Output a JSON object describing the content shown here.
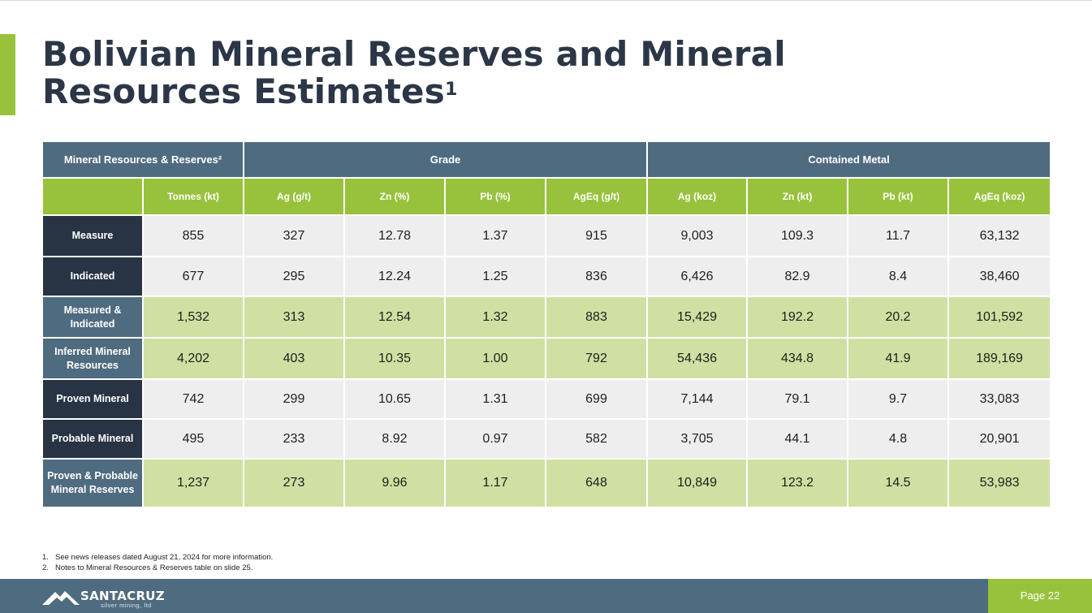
{
  "slide": {
    "title_line1": "Bolivian Mineral Reserves and Mineral",
    "title_line2": "Resources Estimates",
    "title_sup": "1",
    "page_label": "Page 22"
  },
  "brand": {
    "name": "SANTACRUZ",
    "tagline": "silver mining, ltd",
    "colors": {
      "green": "#98c23c",
      "slate": "#4f6b7f",
      "navy": "#283444"
    }
  },
  "table": {
    "group_headers": [
      "Mineral Resources & Reserves²",
      "Grade",
      "Contained Metal"
    ],
    "columns": [
      "Tonnes (kt)",
      "Ag (g/t)",
      "Zn (%)",
      "Pb (%)",
      "AgEq (g/t)",
      "Ag (koz)",
      "Zn (kt)",
      "Pb (kt)",
      "AgEq (koz)"
    ],
    "rows": [
      {
        "label": "Measure",
        "values": [
          "855",
          "327",
          "12.78",
          "1.37",
          "915",
          "9,003",
          "109.3",
          "11.7",
          "63,132"
        ]
      },
      {
        "label": "Indicated",
        "values": [
          "677",
          "295",
          "12.24",
          "1.25",
          "836",
          "6,426",
          "82.9",
          "8.4",
          "38,460"
        ]
      },
      {
        "label": "Measured & Indicated",
        "values": [
          "1,532",
          "313",
          "12.54",
          "1.32",
          "883",
          "15,429",
          "192.2",
          "20.2",
          "101,592"
        ]
      },
      {
        "label": "Inferred Mineral Resources",
        "values": [
          "4,202",
          "403",
          "10.35",
          "1.00",
          "792",
          "54,436",
          "434.8",
          "41.9",
          "189,169"
        ]
      },
      {
        "label": "Proven Mineral",
        "values": [
          "742",
          "299",
          "10.65",
          "1.31",
          "699",
          "7,144",
          "79.1",
          "9.7",
          "33,083"
        ]
      },
      {
        "label": "Probable Mineral",
        "values": [
          "495",
          "233",
          "8.92",
          "0.97",
          "582",
          "3,705",
          "44.1",
          "4.8",
          "20,901"
        ]
      },
      {
        "label": "Proven & Probable Mineral Reserves",
        "values": [
          "1,237",
          "273",
          "9.96",
          "1.17",
          "648",
          "10,849",
          "123.2",
          "14.5",
          "53,983"
        ]
      }
    ]
  },
  "footnotes": [
    {
      "num": "1.",
      "text": "See news releases dated August 21, 2024 for more information."
    },
    {
      "num": "2.",
      "text": "Notes to Mineral Resources & Reserves table on slide 25."
    }
  ]
}
